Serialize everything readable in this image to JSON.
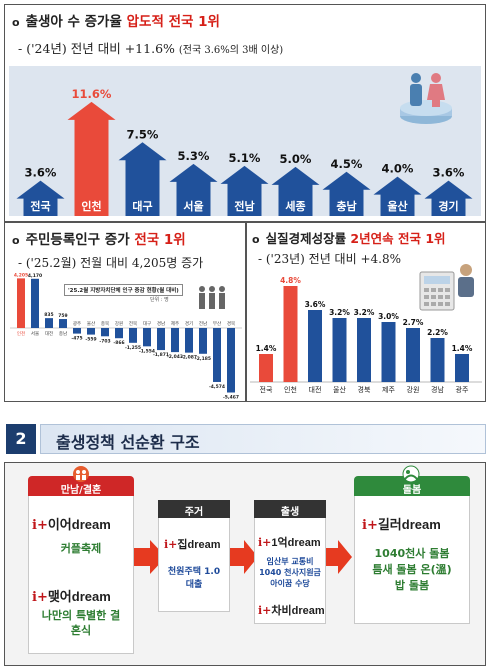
{
  "section1": {
    "heading_prefix": "출생아 수 증가율 ",
    "heading_highlight": "압도적 전국 1위",
    "sub_prefix": "- ('24년) 전년 대비 +11.6% ",
    "sub_note": "(전국 3.6%의 3배 이상)",
    "chart_data": {
      "type": "bar",
      "categories": [
        "전국",
        "인천",
        "대구",
        "서울",
        "전남",
        "세종",
        "충남",
        "울산",
        "경기"
      ],
      "values": [
        3.6,
        11.6,
        7.5,
        5.3,
        5.1,
        5.0,
        4.5,
        4.0,
        3.6
      ],
      "labels": [
        "3.6%",
        "11.6%",
        "7.5%",
        "5.3%",
        "5.1%",
        "5.0%",
        "4.5%",
        "4.0%",
        "3.6%"
      ],
      "colors": {
        "highlight": "#e94a3a",
        "normal": "#20519b",
        "panel_bg": "#dde5ef"
      }
    }
  },
  "section2": {
    "heading_prefix": "주민등록인구 증가 ",
    "heading_highlight": "전국 1위",
    "sub": "- ('25.2월) 전월 대비 4,205명 증가",
    "chart_title": "'25.2월 지방자치단체 인구 증감 현황(월 대비)",
    "unit": "단위 : 명",
    "chart_data": {
      "type": "bar",
      "categories": [
        "인천",
        "서울",
        "대전",
        "충남",
        "광주",
        "울산",
        "충북",
        "강원",
        "전북",
        "대구",
        "경남",
        "제주",
        "경기",
        "전남",
        "부산",
        "경북"
      ],
      "values": [
        4205,
        4170,
        835,
        759,
        -475,
        -559,
        -703,
        -866,
        -1255,
        -1554,
        -1871,
        -2043,
        -2087,
        -2185,
        -4574,
        -5467
      ],
      "labels": [
        "4,205",
        "4,170",
        "835",
        "759",
        "-475",
        "-559",
        "-703",
        "-866",
        "-1,255",
        "-1,554",
        "-1,871",
        "-2,043",
        "-2,087",
        "-2,185",
        "-4,574",
        "-5,467"
      ]
    }
  },
  "section3": {
    "heading_prefix": "실질경제성장률 ",
    "heading_highlight": "2년연속 전국 1위",
    "sub": "- ('23년) 전년 대비 +4.8%",
    "chart_data": {
      "type": "bar",
      "categories": [
        "전국",
        "인천",
        "대전",
        "울산",
        "경북",
        "제주",
        "강원",
        "경남",
        "광주"
      ],
      "values": [
        1.4,
        4.8,
        3.6,
        3.2,
        3.2,
        3.0,
        2.7,
        2.2,
        1.4
      ],
      "labels": [
        "1.4%",
        "4.8%",
        "3.6%",
        "3.2%",
        "3.2%",
        "3.0%",
        "2.7%",
        "2.2%",
        "1.4%"
      ]
    }
  },
  "section4": {
    "number": "2",
    "title": "출생정책 선순환 구조",
    "boxes": {
      "marriage": {
        "title": "만남/결혼",
        "item1": "이어dream",
        "item1_desc": "커플축제",
        "item2": "맺어dream",
        "item2_desc": "나만의 특별한 결혼식"
      },
      "housing": {
        "title": "주거",
        "item1": "집dream",
        "item1_desc": "천원주택 1.0대출"
      },
      "birth": {
        "title": "출생",
        "item1": "1억dream",
        "item1_desc": "임산부 교통비 1040 천사지원금 아이꿈 수당",
        "item2": "차비dream"
      },
      "care": {
        "title": "돌봄",
        "item1": "길러dream",
        "item1_desc": "1040천사 돌봄 틈새 돌봄 온(溫)밥 돌봄"
      }
    },
    "brand_prefix": "i+"
  }
}
